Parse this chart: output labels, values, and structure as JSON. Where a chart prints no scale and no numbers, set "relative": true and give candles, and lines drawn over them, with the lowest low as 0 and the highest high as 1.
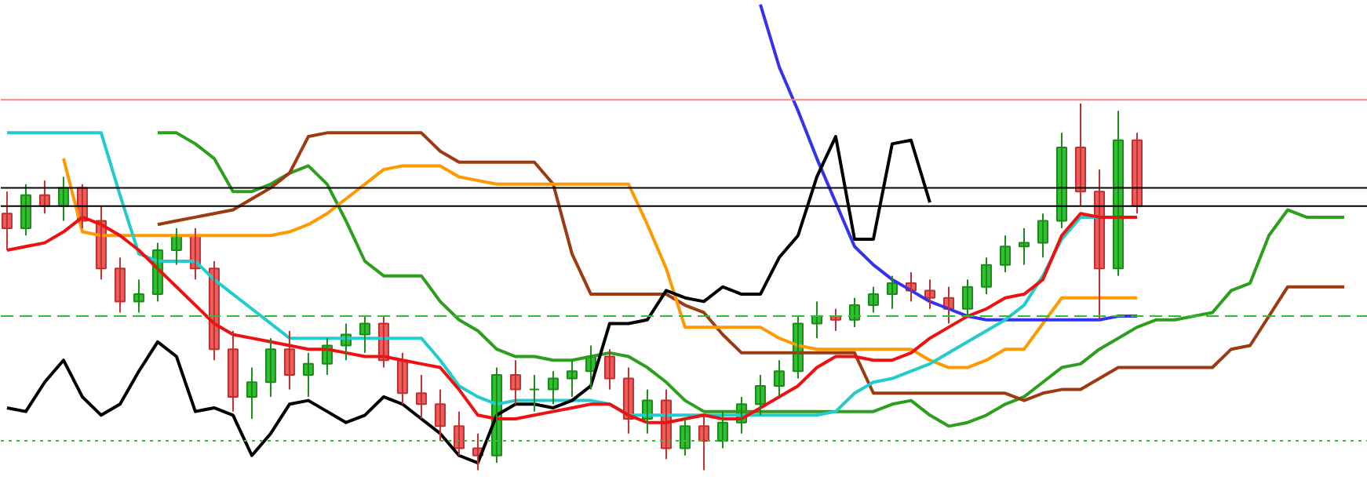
{
  "chart_data": {
    "type": "candlestick",
    "relative": true,
    "grid": false,
    "categories": [
      null,
      null,
      null,
      null,
      null,
      null,
      null,
      null,
      null,
      null,
      null,
      null,
      null,
      null,
      null,
      null,
      null,
      null,
      null,
      null,
      null,
      null,
      null,
      null,
      null,
      null,
      null,
      null,
      null,
      null,
      null,
      null,
      null,
      null,
      null,
      null,
      null,
      null,
      null,
      null,
      null,
      null,
      null,
      null,
      null,
      null,
      null,
      null,
      null,
      null,
      null,
      null,
      null,
      null,
      null,
      null,
      null,
      null,
      null,
      null,
      null,
      null,
      null,
      null,
      null,
      null,
      null,
      null,
      null,
      null,
      null,
      null
    ],
    "ohlc": [
      [
        0.7,
        0.76,
        0.6,
        0.66
      ],
      [
        0.66,
        0.78,
        0.64,
        0.75
      ],
      [
        0.75,
        0.79,
        0.7,
        0.72
      ],
      [
        0.72,
        0.8,
        0.68,
        0.77
      ],
      [
        0.77,
        0.78,
        0.66,
        0.68
      ],
      [
        0.68,
        0.72,
        0.52,
        0.55
      ],
      [
        0.55,
        0.58,
        0.43,
        0.46
      ],
      [
        0.46,
        0.52,
        0.43,
        0.48
      ],
      [
        0.48,
        0.62,
        0.46,
        0.6
      ],
      [
        0.6,
        0.66,
        0.56,
        0.64
      ],
      [
        0.64,
        0.66,
        0.52,
        0.55
      ],
      [
        0.55,
        0.57,
        0.3,
        0.33
      ],
      [
        0.33,
        0.38,
        0.16,
        0.2
      ],
      [
        0.2,
        0.28,
        0.14,
        0.24
      ],
      [
        0.24,
        0.36,
        0.2,
        0.33
      ],
      [
        0.33,
        0.38,
        0.22,
        0.26
      ],
      [
        0.26,
        0.32,
        0.2,
        0.29
      ],
      [
        0.29,
        0.36,
        0.26,
        0.34
      ],
      [
        0.34,
        0.4,
        0.3,
        0.37
      ],
      [
        0.37,
        0.42,
        0.32,
        0.4
      ],
      [
        0.4,
        0.42,
        0.28,
        0.3
      ],
      [
        0.3,
        0.32,
        0.18,
        0.21
      ],
      [
        0.21,
        0.26,
        0.14,
        0.18
      ],
      [
        0.18,
        0.22,
        0.08,
        0.12
      ],
      [
        0.12,
        0.16,
        0.04,
        0.06
      ],
      [
        0.06,
        0.1,
        0.0,
        0.04
      ],
      [
        0.04,
        0.28,
        0.02,
        0.26
      ],
      [
        0.26,
        0.3,
        0.18,
        0.22
      ],
      [
        0.22,
        0.26,
        0.16,
        0.22
      ],
      [
        0.22,
        0.27,
        0.18,
        0.25
      ],
      [
        0.25,
        0.3,
        0.2,
        0.27
      ],
      [
        0.27,
        0.34,
        0.22,
        0.31
      ],
      [
        0.31,
        0.33,
        0.22,
        0.25
      ],
      [
        0.25,
        0.28,
        0.1,
        0.14
      ],
      [
        0.14,
        0.22,
        0.1,
        0.19
      ],
      [
        0.19,
        0.22,
        0.03,
        0.06
      ],
      [
        0.06,
        0.14,
        0.04,
        0.12
      ],
      [
        0.12,
        0.15,
        0.0,
        0.08
      ],
      [
        0.08,
        0.16,
        0.06,
        0.13
      ],
      [
        0.13,
        0.2,
        0.1,
        0.18
      ],
      [
        0.18,
        0.26,
        0.15,
        0.23
      ],
      [
        0.23,
        0.3,
        0.2,
        0.27
      ],
      [
        0.27,
        0.42,
        0.25,
        0.4
      ],
      [
        0.4,
        0.46,
        0.36,
        0.42
      ],
      [
        0.42,
        0.44,
        0.38,
        0.41
      ],
      [
        0.41,
        0.47,
        0.39,
        0.45
      ],
      [
        0.45,
        0.5,
        0.43,
        0.48
      ],
      [
        0.48,
        0.53,
        0.44,
        0.51
      ],
      [
        0.51,
        0.54,
        0.46,
        0.49
      ],
      [
        0.49,
        0.52,
        0.44,
        0.47
      ],
      [
        0.47,
        0.5,
        0.4,
        0.44
      ],
      [
        0.44,
        0.52,
        0.42,
        0.5
      ],
      [
        0.5,
        0.58,
        0.48,
        0.56
      ],
      [
        0.56,
        0.64,
        0.54,
        0.61
      ],
      [
        0.61,
        0.66,
        0.56,
        0.62
      ],
      [
        0.62,
        0.7,
        0.58,
        0.68
      ],
      [
        0.68,
        0.92,
        0.66,
        0.88
      ],
      [
        0.88,
        1.0,
        0.72,
        0.76
      ],
      [
        0.76,
        0.82,
        0.41,
        0.55
      ],
      [
        0.55,
        0.98,
        0.53,
        0.9
      ],
      [
        0.9,
        0.92,
        0.7,
        0.72
      ],
      null,
      null,
      null,
      null,
      null,
      null,
      null,
      null,
      null,
      null,
      null
    ],
    "series": [
      {
        "type": "line",
        "color": "#2e9e1e",
        "values": [
          null,
          null,
          null,
          null,
          null,
          null,
          null,
          null,
          0.92,
          0.92,
          0.89,
          0.85,
          0.76,
          0.76,
          0.78,
          0.81,
          0.83,
          0.78,
          0.68,
          0.57,
          0.53,
          0.53,
          0.53,
          0.46,
          0.41,
          0.38,
          0.33,
          0.31,
          0.31,
          0.3,
          0.3,
          0.31,
          0.32,
          0.31,
          0.28,
          0.24,
          0.19,
          0.16,
          0.16,
          0.16,
          0.16,
          0.16,
          0.16,
          0.16,
          0.16,
          0.16,
          0.16,
          0.18,
          0.19,
          0.15,
          0.12,
          0.13,
          0.15,
          0.18,
          0.2,
          0.24,
          0.28,
          0.29,
          0.33,
          0.36,
          0.39,
          0.41,
          0.41,
          0.42,
          0.43,
          0.49,
          0.51,
          0.64,
          0.71,
          0.69,
          0.69,
          0.69
        ]
      },
      {
        "type": "line",
        "color": "#9c3a12",
        "values": [
          null,
          null,
          null,
          null,
          null,
          null,
          null,
          null,
          0.67,
          0.68,
          0.69,
          0.7,
          0.71,
          0.74,
          0.77,
          0.81,
          0.91,
          0.92,
          0.92,
          0.92,
          0.92,
          0.92,
          0.92,
          0.87,
          0.84,
          0.84,
          0.84,
          0.84,
          0.84,
          0.78,
          0.59,
          0.48,
          0.48,
          0.48,
          0.48,
          0.48,
          0.45,
          0.43,
          0.37,
          0.32,
          0.32,
          0.32,
          0.32,
          0.32,
          0.32,
          0.32,
          0.21,
          0.21,
          0.21,
          0.21,
          0.21,
          0.21,
          0.21,
          0.21,
          0.19,
          0.21,
          0.22,
          0.22,
          0.25,
          0.28,
          0.28,
          0.28,
          0.28,
          0.28,
          0.28,
          0.33,
          0.34,
          0.42,
          0.5,
          0.5,
          0.5,
          0.5
        ]
      },
      {
        "type": "line",
        "color": "#ff9900",
        "values": [
          null,
          null,
          null,
          0.85,
          0.65,
          0.64,
          0.64,
          0.64,
          0.64,
          0.64,
          0.64,
          0.64,
          0.64,
          0.64,
          0.64,
          0.65,
          0.67,
          0.7,
          0.74,
          0.78,
          0.82,
          0.83,
          0.83,
          0.83,
          0.8,
          0.79,
          0.78,
          0.78,
          0.78,
          0.78,
          0.78,
          0.78,
          0.78,
          0.78,
          0.67,
          0.55,
          0.39,
          0.39,
          0.39,
          0.39,
          0.39,
          0.36,
          0.34,
          0.33,
          0.33,
          0.33,
          0.33,
          0.33,
          0.33,
          0.3,
          0.28,
          0.28,
          0.3,
          0.33,
          0.33,
          0.4,
          0.47,
          0.47,
          0.47,
          0.47,
          0.47,
          null,
          null,
          null,
          null,
          null,
          null,
          null,
          null,
          null,
          null,
          null
        ]
      },
      {
        "type": "line",
        "color": "#3333ee",
        "values": [
          null,
          null,
          null,
          null,
          null,
          null,
          null,
          null,
          null,
          null,
          null,
          null,
          null,
          null,
          null,
          null,
          null,
          null,
          null,
          null,
          null,
          null,
          null,
          null,
          null,
          null,
          null,
          null,
          null,
          null,
          null,
          null,
          null,
          null,
          null,
          null,
          null,
          null,
          null,
          null,
          1.27,
          1.1,
          0.98,
          0.85,
          0.73,
          0.61,
          0.56,
          0.52,
          0.49,
          0.46,
          0.44,
          0.42,
          0.41,
          0.41,
          0.41,
          0.41,
          0.41,
          0.41,
          0.41,
          0.42,
          0.42,
          null,
          null,
          null,
          null,
          null,
          null,
          null,
          null,
          null,
          null,
          null
        ]
      },
      {
        "type": "line",
        "color": "#22cccc",
        "values": [
          0.92,
          0.92,
          0.92,
          0.92,
          0.92,
          0.92,
          0.75,
          0.59,
          0.57,
          0.57,
          0.57,
          0.52,
          0.48,
          0.44,
          0.4,
          0.36,
          0.36,
          0.36,
          0.36,
          0.36,
          0.36,
          0.36,
          0.36,
          0.3,
          0.23,
          0.2,
          0.18,
          0.19,
          0.19,
          0.19,
          0.19,
          0.19,
          0.18,
          0.15,
          0.15,
          0.15,
          0.15,
          0.15,
          0.15,
          0.15,
          0.15,
          0.15,
          0.15,
          0.15,
          0.16,
          0.21,
          0.24,
          0.25,
          0.27,
          0.29,
          0.32,
          0.35,
          0.38,
          0.41,
          0.45,
          0.53,
          0.63,
          0.69,
          0.69,
          0.69,
          0.69,
          null,
          null,
          null,
          null,
          null,
          null,
          null,
          null,
          null,
          null,
          null
        ]
      },
      {
        "type": "line",
        "color": "#ee1111",
        "values": [
          0.6,
          0.61,
          0.62,
          0.65,
          0.69,
          0.67,
          0.64,
          0.6,
          0.55,
          0.5,
          0.45,
          0.4,
          0.37,
          0.36,
          0.35,
          0.34,
          0.33,
          0.33,
          0.32,
          0.31,
          0.31,
          0.3,
          0.29,
          0.28,
          0.22,
          0.15,
          0.14,
          0.14,
          0.15,
          0.16,
          0.17,
          0.18,
          0.18,
          0.15,
          0.13,
          0.13,
          0.14,
          0.15,
          0.14,
          0.14,
          0.17,
          0.2,
          0.23,
          0.28,
          0.31,
          0.31,
          0.3,
          0.3,
          0.32,
          0.36,
          0.39,
          0.42,
          0.44,
          0.47,
          0.48,
          0.52,
          0.64,
          0.7,
          0.69,
          0.69,
          0.69,
          null,
          null,
          null,
          null,
          null,
          null,
          null,
          null,
          null,
          null,
          null
        ]
      },
      {
        "type": "line",
        "color": "#000000",
        "values": [
          0.17,
          0.16,
          0.24,
          0.3,
          0.2,
          0.15,
          0.18,
          0.27,
          0.35,
          0.31,
          0.16,
          0.17,
          0.15,
          0.04,
          0.1,
          0.18,
          0.19,
          0.16,
          0.13,
          0.15,
          0.2,
          0.18,
          0.14,
          0.1,
          0.04,
          0.02,
          0.15,
          0.18,
          0.18,
          0.17,
          0.19,
          0.23,
          0.4,
          0.4,
          0.41,
          0.49,
          0.47,
          0.46,
          0.5,
          0.48,
          0.48,
          0.58,
          0.64,
          0.8,
          0.91,
          0.63,
          0.63,
          0.89,
          0.9,
          0.73,
          null,
          null,
          null,
          null,
          null,
          null,
          null,
          null,
          null,
          null,
          null,
          null,
          null,
          null,
          null,
          null,
          null,
          null,
          null,
          null,
          null,
          null
        ]
      }
    ],
    "ref_lines": [
      {
        "axis": "y",
        "value": 1.01,
        "color": "#ff8080",
        "line_style": "solid"
      },
      {
        "axis": "y",
        "value": 0.77,
        "color": "#000000",
        "line_style": "solid"
      },
      {
        "axis": "y",
        "value": 0.72,
        "color": "#000000",
        "line_style": "solid"
      },
      {
        "axis": "y",
        "value": 0.42,
        "color": "#33bb33",
        "line_style": "dashed"
      },
      {
        "axis": "y",
        "value": 0.08,
        "color": "#33bb33",
        "line_style": "dotted"
      }
    ]
  }
}
